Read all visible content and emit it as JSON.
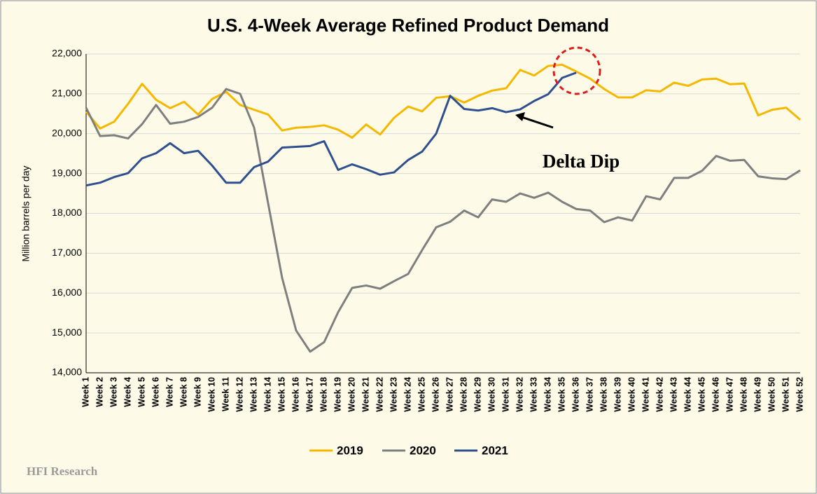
{
  "chart_data": {
    "type": "line",
    "title": "U.S. 4-Week Average Refined Product Demand",
    "y_label": "Million barrels per day",
    "categories": [
      "Week 1",
      "Week 2",
      "Week 3",
      "Week 4",
      "Week 5",
      "Week 6",
      "Week 7",
      "Week 8",
      "Week 9",
      "Week 10",
      "Week 11",
      "Week 12",
      "Week 13",
      "Week 14",
      "Week 15",
      "Week 16",
      "Week 17",
      "Week 18",
      "Week 19",
      "Week 20",
      "Week 21",
      "Week 22",
      "Week 23",
      "Week 24",
      "Week 25",
      "Week 26",
      "Week 27",
      "Week 28",
      "Week 29",
      "Week 30",
      "Week 31",
      "Week 32",
      "Week 33",
      "Week 34",
      "Week 35",
      "Week 36",
      "Week 37",
      "Week 38",
      "Week 39",
      "Week 40",
      "Week 41",
      "Week 42",
      "Week 43",
      "Week 44",
      "Week 45",
      "Week 46",
      "Week 47",
      "Week 48",
      "Week 49",
      "Week 50",
      "Week 51",
      "Week 52"
    ],
    "series": [
      {
        "name": "2019",
        "color": "#f5b800",
        "values": [
          20550,
          20130,
          20300,
          20750,
          21250,
          20850,
          20640,
          20800,
          20480,
          20870,
          21050,
          20720,
          20600,
          20480,
          20080,
          20150,
          20170,
          20210,
          20100,
          19900,
          20230,
          19980,
          20400,
          20680,
          20560,
          20900,
          20940,
          20780,
          20950,
          21080,
          21140,
          21600,
          21460,
          21700,
          21730,
          21560,
          21380,
          21120,
          20910,
          20910,
          21090,
          21060,
          21280,
          21200,
          21360,
          21380,
          21240,
          21260,
          20460,
          20600,
          20650,
          20350
        ]
      },
      {
        "name": "2020",
        "color": "#7f7f7f",
        "values": [
          20650,
          19940,
          19960,
          19880,
          20240,
          20720,
          20250,
          20300,
          20420,
          20650,
          21120,
          21000,
          20150,
          18250,
          16380,
          15060,
          14530,
          14770,
          15520,
          16130,
          16190,
          16110,
          16300,
          16480,
          17080,
          17650,
          17790,
          18070,
          17900,
          18350,
          18290,
          18500,
          18390,
          18520,
          18290,
          18110,
          18070,
          17780,
          17900,
          17820,
          18430,
          18350,
          18890,
          18890,
          19070,
          19440,
          19320,
          19340,
          18930,
          18880,
          18860,
          19080
        ]
      },
      {
        "name": "2021",
        "color": "#2f4f8f",
        "values": [
          18700,
          18770,
          18910,
          19010,
          19380,
          19510,
          19760,
          19510,
          19570,
          19200,
          18770,
          18770,
          19160,
          19300,
          19650,
          19670,
          19690,
          19810,
          19090,
          19230,
          19110,
          18970,
          19030,
          19340,
          19550,
          20000,
          20950,
          20620,
          20580,
          20640,
          20540,
          20610,
          20820,
          20990,
          21400,
          21530,
          null,
          null,
          null,
          null,
          null,
          null,
          null,
          null,
          null,
          null,
          null,
          null,
          null,
          null,
          null,
          null
        ]
      }
    ],
    "ylim": [
      14000,
      22000
    ],
    "yticks": [
      {
        "value": 14000,
        "label": "14,000"
      },
      {
        "value": 15000,
        "label": "15,000"
      },
      {
        "value": 16000,
        "label": "16,000"
      },
      {
        "value": 17000,
        "label": "17,000"
      },
      {
        "value": 18000,
        "label": "18,000"
      },
      {
        "value": 19000,
        "label": "19,000"
      },
      {
        "value": 20000,
        "label": "20,000"
      },
      {
        "value": 21000,
        "label": "21,000"
      },
      {
        "value": 22000,
        "label": "22,000"
      }
    ],
    "grid": true,
    "legend": "bottom",
    "annotation": "Delta Dip",
    "source": "HFI Research"
  }
}
